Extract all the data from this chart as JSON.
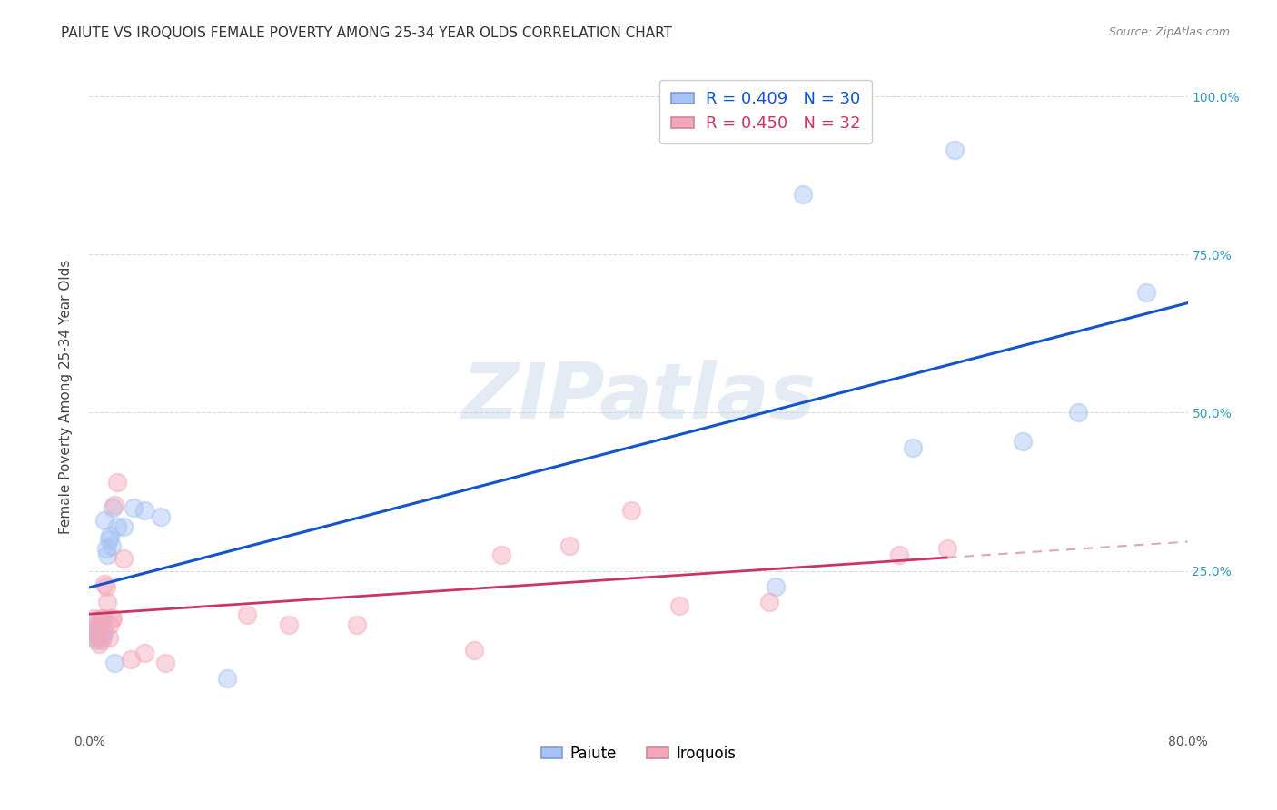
{
  "title": "PAIUTE VS IROQUOIS FEMALE POVERTY AMONG 25-34 YEAR OLDS CORRELATION CHART",
  "source": "Source: ZipAtlas.com",
  "ylabel": "Female Poverty Among 25-34 Year Olds",
  "xlim": [
    0.0,
    0.8
  ],
  "ylim": [
    0.0,
    1.05
  ],
  "xtick_positions": [
    0.0,
    0.1,
    0.2,
    0.3,
    0.4,
    0.5,
    0.6,
    0.7,
    0.8
  ],
  "xticklabels": [
    "0.0%",
    "",
    "",
    "",
    "",
    "",
    "",
    "",
    "80.0%"
  ],
  "ytick_positions": [
    0.0,
    0.25,
    0.5,
    0.75,
    1.0
  ],
  "yticklabels_right": [
    "",
    "25.0%",
    "50.0%",
    "75.0%",
    "100.0%"
  ],
  "paiute_color": "#a4c2f4",
  "iroquois_color": "#f4a7b9",
  "paiute_line_color": "#1155cc",
  "iroquois_line_color": "#cc3366",
  "iroquois_dash_color": "#ddaaaa",
  "legend_paiute_R": "R = 0.409",
  "legend_paiute_N": "N = 30",
  "legend_iroquois_R": "R = 0.450",
  "legend_iroquois_N": "N = 32",
  "watermark": "ZIPatlas",
  "watermark_color": "#b8cce4",
  "paiute_x": [
    0.003,
    0.004,
    0.005,
    0.006,
    0.007,
    0.008,
    0.009,
    0.01,
    0.01,
    0.011,
    0.012,
    0.013,
    0.014,
    0.015,
    0.016,
    0.017,
    0.018,
    0.02,
    0.025,
    0.032,
    0.04,
    0.052,
    0.1,
    0.5,
    0.52,
    0.6,
    0.63,
    0.68,
    0.72,
    0.77
  ],
  "paiute_y": [
    0.165,
    0.155,
    0.14,
    0.145,
    0.16,
    0.17,
    0.145,
    0.155,
    0.15,
    0.33,
    0.285,
    0.275,
    0.3,
    0.305,
    0.29,
    0.35,
    0.105,
    0.32,
    0.32,
    0.35,
    0.345,
    0.335,
    0.08,
    0.225,
    0.845,
    0.445,
    0.915,
    0.455,
    0.5,
    0.69
  ],
  "iroquois_x": [
    0.003,
    0.004,
    0.005,
    0.006,
    0.007,
    0.008,
    0.009,
    0.01,
    0.011,
    0.012,
    0.013,
    0.014,
    0.015,
    0.016,
    0.017,
    0.018,
    0.02,
    0.025,
    0.03,
    0.04,
    0.055,
    0.115,
    0.145,
    0.195,
    0.28,
    0.3,
    0.35,
    0.395,
    0.43,
    0.495,
    0.59,
    0.625
  ],
  "iroquois_y": [
    0.175,
    0.16,
    0.145,
    0.155,
    0.135,
    0.175,
    0.14,
    0.175,
    0.23,
    0.225,
    0.2,
    0.145,
    0.165,
    0.175,
    0.175,
    0.355,
    0.39,
    0.27,
    0.11,
    0.12,
    0.105,
    0.18,
    0.165,
    0.165,
    0.125,
    0.275,
    0.29,
    0.345,
    0.195,
    0.2,
    0.275,
    0.285
  ],
  "grid_color": "#cccccc",
  "background_color": "#ffffff",
  "title_fontsize": 11,
  "axis_label_fontsize": 11,
  "tick_fontsize": 10,
  "marker_size": 200,
  "marker_alpha": 0.45,
  "marker_edge_alpha": 0.9,
  "marker_edge_width": 1.5
}
